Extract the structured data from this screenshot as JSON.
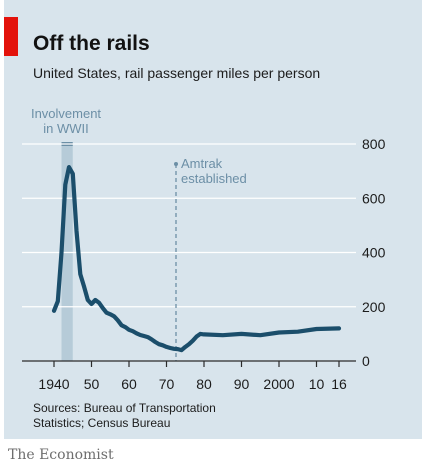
{
  "header": {
    "title": "Off the rails",
    "subtitle": "United States, rail passenger miles per person"
  },
  "footer": {
    "source_line1": "Sources: Bureau of Transportation",
    "source_line2": "Statistics; Census Bureau",
    "brand": "The Economist"
  },
  "colors": {
    "accent": "#e3120b",
    "line": "#1b4e6b",
    "shade": "#b6cbd8",
    "annotation": "#6c8fa6",
    "background": "#d8e4ec",
    "axis": "#2b2b2b"
  },
  "chart_data": {
    "type": "line",
    "title": "Off the rails",
    "subtitle": "United States, rail passenger miles per person",
    "xlabel": "",
    "ylabel": "",
    "xlim": [
      1938,
      2018
    ],
    "ylim": [
      0,
      800
    ],
    "grid": true,
    "y_axis_side": "right",
    "x_ticks": [
      1940,
      1950,
      1960,
      1970,
      1980,
      1990,
      2000,
      2010,
      2016
    ],
    "x_tick_labels": [
      "1940",
      "50",
      "60",
      "70",
      "80",
      "90",
      "2000",
      "10",
      "16"
    ],
    "y_ticks": [
      0,
      200,
      400,
      600,
      800
    ],
    "y_tick_labels": [
      "0",
      "200",
      "400",
      "600",
      "800"
    ],
    "series": [
      {
        "x": [
          1940,
          1941,
          1942,
          1943,
          1944,
          1945,
          1946,
          1947,
          1948,
          1949,
          1950,
          1951,
          1952,
          1953,
          1954,
          1955,
          1956,
          1957,
          1958,
          1959,
          1960,
          1961,
          1962,
          1963,
          1964,
          1965,
          1966,
          1967,
          1968,
          1969,
          1970,
          1971,
          1972,
          1973,
          1974,
          1975,
          1976,
          1977,
          1978,
          1979,
          1980,
          1985,
          1990,
          1995,
          2000,
          2005,
          2010,
          2016
        ],
        "values": [
          185,
          220,
          400,
          650,
          715,
          690,
          480,
          320,
          275,
          225,
          210,
          225,
          215,
          195,
          178,
          172,
          165,
          150,
          132,
          125,
          115,
          110,
          102,
          96,
          92,
          88,
          80,
          70,
          62,
          58,
          52,
          48,
          45,
          44,
          40,
          52,
          62,
          75,
          90,
          100,
          98,
          95,
          100,
          95,
          105,
          108,
          118,
          120
        ]
      }
    ],
    "annotations": [
      {
        "label_lines": [
          "Involvement",
          "in WWII"
        ],
        "x_start": 1942,
        "x_end": 1945
      },
      {
        "label_lines": [
          "Amtrak",
          "established"
        ],
        "x": 1971
      }
    ]
  }
}
